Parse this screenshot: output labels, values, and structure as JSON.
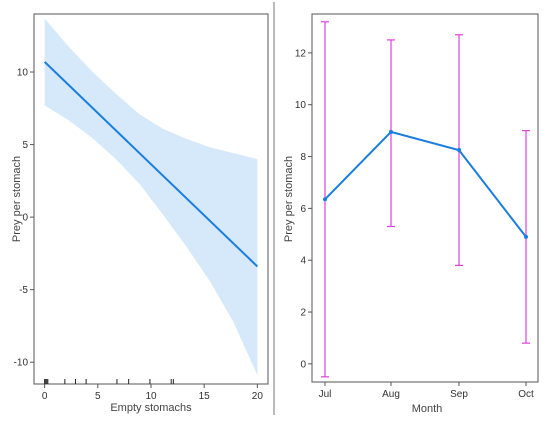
{
  "colors": {
    "band": "#d6e9fb",
    "line": "#1a7ee0",
    "error_bar": "#e040e0",
    "axis": "#555555",
    "divider": "#777777"
  },
  "chart_data": [
    {
      "type": "line",
      "xlabel": "Empty stomachs",
      "ylabel": "Prey per stomach",
      "xlim": [
        -1,
        21
      ],
      "ylim": [
        -11.5,
        14
      ],
      "xticks": [
        0,
        5,
        10,
        15,
        20
      ],
      "yticks": [
        -10,
        -5,
        0,
        5,
        10
      ],
      "xtick_labels": [
        "0",
        "5",
        "10",
        "15",
        "20"
      ],
      "ytick_labels": [
        "-10",
        "-5",
        "0",
        "5",
        "10"
      ],
      "series": [
        {
          "x": [
            0,
            20
          ],
          "y": [
            10.7,
            -3.4
          ],
          "band_lower": [
            7.7,
            6.7,
            5.5,
            4.0,
            2.3,
            0.2,
            -2.0,
            -4.5,
            -7.3,
            -10.9
          ],
          "band_upper": [
            13.7,
            11.8,
            10.1,
            8.5,
            7.1,
            6.1,
            5.4,
            4.8,
            4.4,
            4.0
          ],
          "band_x": [
            0,
            2.2,
            4.4,
            6.7,
            8.9,
            11.1,
            13.3,
            15.6,
            17.8,
            20
          ]
        }
      ],
      "rug": [
        0,
        0.1,
        0.2,
        0.3,
        1.9,
        2.9,
        3.9,
        6.8,
        7.9,
        9.9,
        11.9,
        12.1
      ],
      "grid": false
    },
    {
      "type": "line",
      "xlabel": "Month",
      "ylabel": "Prey per stomach",
      "categories": [
        "Jul",
        "Aug",
        "Sep",
        "Oct"
      ],
      "ylim": [
        -0.7,
        13.5
      ],
      "yticks": [
        0,
        2,
        4,
        6,
        8,
        10,
        12
      ],
      "ytick_labels": [
        "0",
        "2",
        "4",
        "6",
        "8",
        "10",
        "12"
      ],
      "series": [
        {
          "values": [
            6.35,
            8.95,
            8.25,
            4.9
          ],
          "lower": [
            -0.5,
            5.3,
            3.8,
            0.8
          ],
          "upper": [
            13.2,
            12.5,
            12.7,
            9.0
          ]
        }
      ],
      "grid": false
    }
  ]
}
